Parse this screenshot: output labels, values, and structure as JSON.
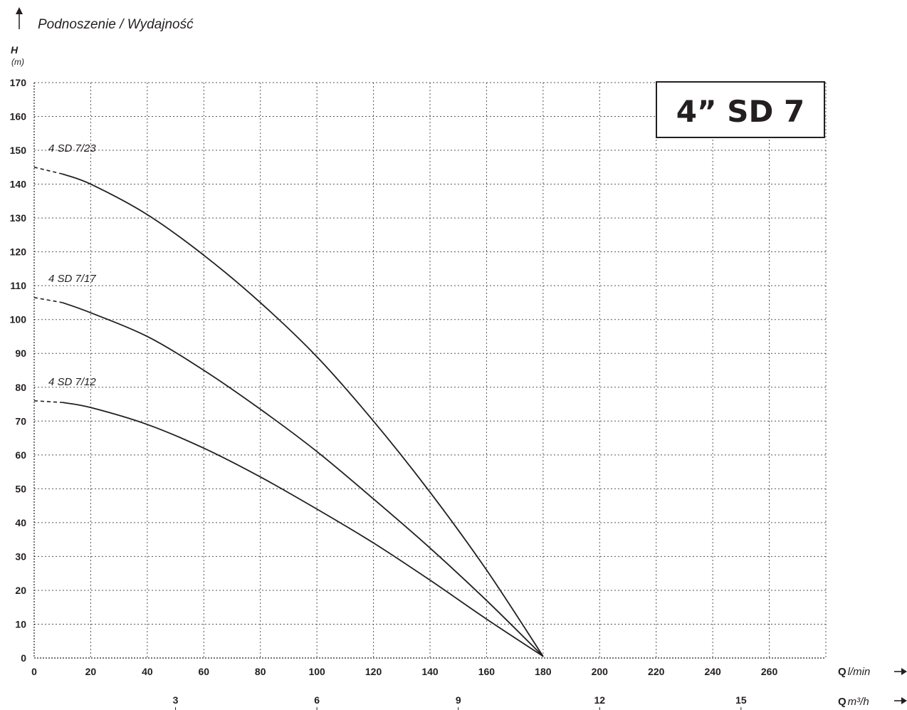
{
  "chart_data": {
    "type": "line",
    "title": "Podnoszenie / Wydajność",
    "model_box": "4” SD 7",
    "y_axis": {
      "label": "H",
      "unit": "(m)",
      "range": [
        0,
        170
      ],
      "ticks": [
        0,
        10,
        20,
        30,
        40,
        50,
        60,
        70,
        80,
        90,
        100,
        110,
        120,
        130,
        140,
        150,
        160,
        170
      ]
    },
    "x_axis": {
      "label_q": "Q",
      "unit": "l/min",
      "range": [
        0,
        280
      ],
      "ticks": [
        0,
        20,
        40,
        60,
        80,
        100,
        120,
        140,
        160,
        180,
        200,
        220,
        240,
        260
      ]
    },
    "x2_axis": {
      "label_q": "Q",
      "unit": "m³/h",
      "ticks": [
        3,
        6,
        9,
        12,
        15
      ]
    },
    "grid": true,
    "series": [
      {
        "name": "4 SD 7/23",
        "dashed_to_x": 10,
        "x": [
          0,
          10,
          20,
          40,
          60,
          80,
          100,
          120,
          140,
          160,
          180
        ],
        "y": [
          145,
          143,
          140,
          131,
          119,
          105,
          89,
          70,
          49,
          26,
          0.5
        ]
      },
      {
        "name": "4 SD 7/17",
        "dashed_to_x": 10,
        "x": [
          0,
          10,
          20,
          40,
          60,
          80,
          100,
          120,
          140,
          160,
          180
        ],
        "y": [
          106.5,
          105,
          102,
          95,
          85,
          73.5,
          61,
          47,
          32.5,
          17,
          0.5
        ]
      },
      {
        "name": "4 SD 7/12",
        "dashed_to_x": 10,
        "x": [
          0,
          10,
          20,
          40,
          60,
          80,
          100,
          120,
          140,
          160,
          180
        ],
        "y": [
          76,
          75.5,
          74,
          69,
          62,
          53.5,
          44,
          34,
          23,
          11.5,
          0.5
        ]
      }
    ]
  }
}
